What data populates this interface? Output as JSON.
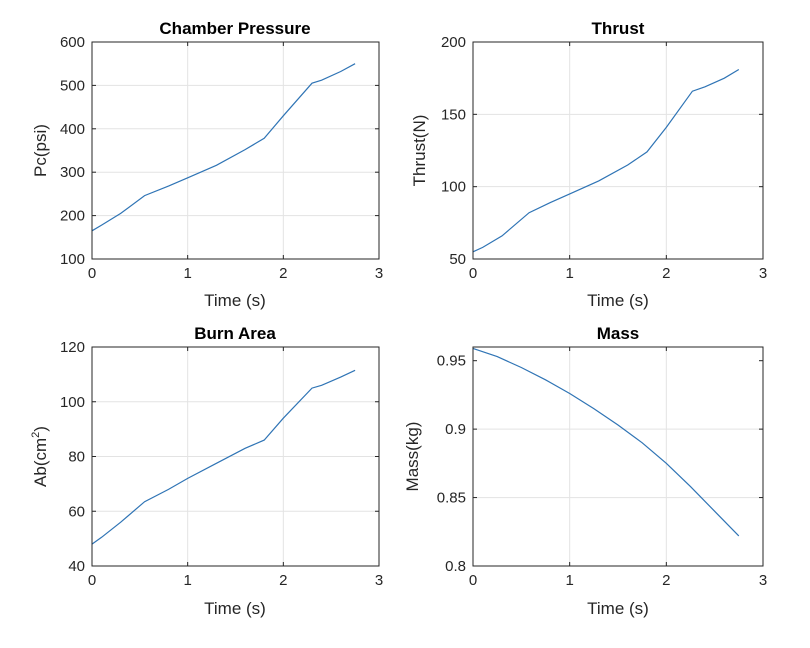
{
  "figure": {
    "line_color": "#2f74b5",
    "grid_color": "#e3e3e3",
    "axis_color": "#262626"
  },
  "chart_data": [
    {
      "type": "line",
      "title": "Chamber Pressure",
      "xlabel": "Time (s)",
      "ylabel": "Pc(psi)",
      "xlim": [
        0,
        3
      ],
      "ylim": [
        100,
        600
      ],
      "xticks": [
        0,
        1,
        2,
        3
      ],
      "xtick_labels": [
        "0",
        "1",
        "2",
        "3"
      ],
      "yticks": [
        100,
        200,
        300,
        400,
        500,
        600
      ],
      "ytick_labels": [
        "100",
        "200",
        "300",
        "400",
        "500",
        "600"
      ],
      "grid": true,
      "series": [
        {
          "name": "Pc",
          "x": [
            0,
            0.1,
            0.3,
            0.55,
            0.8,
            1.0,
            1.3,
            1.6,
            1.8,
            2.0,
            2.3,
            2.4,
            2.6,
            2.75
          ],
          "y": [
            165,
            178,
            205,
            246,
            268,
            287,
            316,
            352,
            378,
            430,
            505,
            512,
            532,
            550
          ]
        }
      ]
    },
    {
      "type": "line",
      "title": "Thrust",
      "xlabel": "Time (s)",
      "ylabel": "Thrust(N)",
      "xlim": [
        0,
        3
      ],
      "ylim": [
        50,
        200
      ],
      "xticks": [
        0,
        1,
        2,
        3
      ],
      "xtick_labels": [
        "0",
        "1",
        "2",
        "3"
      ],
      "yticks": [
        50,
        100,
        150,
        200
      ],
      "ytick_labels": [
        "50",
        "100",
        "150",
        "200"
      ],
      "grid": true,
      "series": [
        {
          "name": "Thrust",
          "x": [
            0,
            0.1,
            0.3,
            0.58,
            0.8,
            1.0,
            1.3,
            1.6,
            1.8,
            2.0,
            2.27,
            2.4,
            2.6,
            2.75
          ],
          "y": [
            55,
            58,
            66,
            82,
            89,
            95,
            104,
            115,
            124,
            141,
            166,
            169,
            175,
            181
          ]
        }
      ]
    },
    {
      "type": "line",
      "title": "Burn Area",
      "xlabel": "Time (s)",
      "ylabel": "Ab(cm",
      "ylabel_superscript": "2",
      "ylabel_suffix": ")",
      "xlim": [
        0,
        3
      ],
      "ylim": [
        40,
        120
      ],
      "xticks": [
        0,
        1,
        2,
        3
      ],
      "xtick_labels": [
        "0",
        "1",
        "2",
        "3"
      ],
      "yticks": [
        40,
        60,
        80,
        100,
        120
      ],
      "ytick_labels": [
        "40",
        "60",
        "80",
        "100",
        "120"
      ],
      "grid": true,
      "series": [
        {
          "name": "Ab",
          "x": [
            0,
            0.1,
            0.3,
            0.55,
            0.8,
            1.0,
            1.3,
            1.6,
            1.8,
            2.0,
            2.3,
            2.4,
            2.6,
            2.75
          ],
          "y": [
            48,
            50.5,
            56,
            63.5,
            68,
            72,
            77.5,
            83,
            86,
            94,
            105,
            106,
            109,
            111.5
          ]
        }
      ]
    },
    {
      "type": "line",
      "title": "Mass",
      "xlabel": "Time (s)",
      "ylabel": "Mass(kg)",
      "xlim": [
        0,
        3
      ],
      "ylim": [
        0.8,
        0.96
      ],
      "xticks": [
        0,
        1,
        2,
        3
      ],
      "xtick_labels": [
        "0",
        "1",
        "2",
        "3"
      ],
      "yticks": [
        0.8,
        0.85,
        0.9,
        0.95
      ],
      "ytick_labels": [
        "0.8",
        "0.85",
        "0.9",
        "0.95"
      ],
      "grid": true,
      "series": [
        {
          "name": "Mass",
          "x": [
            0,
            0.25,
            0.5,
            0.75,
            1.0,
            1.25,
            1.5,
            1.75,
            2.0,
            2.25,
            2.5,
            2.75
          ],
          "y": [
            0.959,
            0.953,
            0.945,
            0.936,
            0.926,
            0.915,
            0.903,
            0.89,
            0.875,
            0.858,
            0.84,
            0.822
          ]
        }
      ]
    }
  ]
}
